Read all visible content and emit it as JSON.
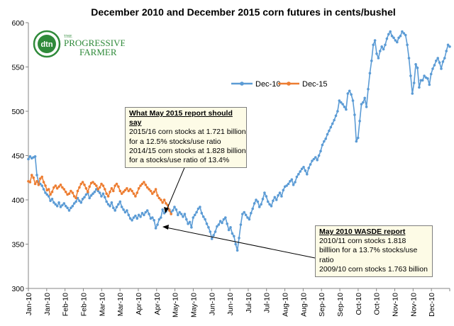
{
  "logo": {
    "badge": "dtn",
    "line1": "THE",
    "line2": "PROGRESSIVE",
    "line3": "FARMER"
  },
  "colors": {
    "dec10": "#5b9bd5",
    "dec15": "#ed7d31",
    "axis": "#868686",
    "note_bg": "#fdfbe6",
    "logo_green": "#2f8a3a"
  },
  "notes": [
    {
      "id": "may2015",
      "title": "What May 2015 report should say",
      "lines": [
        "2015/16 corn stocks at 1.721 billion",
        "for a 12.5% stocks/use ratio",
        "2014/15 corn stocks at 1.828 billion",
        "for a stocks/use ratio of 13.4%"
      ]
    },
    {
      "id": "may2010",
      "title": "May 2010 WASDE report",
      "lines": [
        "2010/11 corn stocks 1.818",
        "billlion for a 13.7% stocks/use",
        "ratio",
        "2009/10 corn stocks 1.763 billion"
      ]
    }
  ],
  "chart_data": {
    "type": "line",
    "title": "December 2010 and December 2015 corn futures in cents/bushel",
    "xlabel": "",
    "ylabel": "",
    "ylim": [
      300,
      600
    ],
    "yticks": [
      300,
      350,
      400,
      450,
      500,
      550,
      600
    ],
    "xticks": [
      "Jan-10",
      "Jan-10",
      "Feb-10",
      "Feb-10",
      "Mar-10",
      "Mar-10",
      "Apr-10",
      "Apr-10",
      "May-10",
      "May-10",
      "Jun-10",
      "Jun-10",
      "Jul-10",
      "Jul-10",
      "Aug-10",
      "Aug-10",
      "Sep-10",
      "Sep-10",
      "Oct-10",
      "Oct-10",
      "Nov-10",
      "Nov-10",
      "Dec-10"
    ],
    "grid": false,
    "legend": "top-center",
    "series": [
      {
        "name": "Dec-10",
        "x_range": [
          0,
          248
        ],
        "values": [
          446,
          449,
          447,
          448,
          449,
          428,
          420,
          418,
          416,
          412,
          408,
          406,
          404,
          399,
          401,
          397,
          395,
          393,
          397,
          392,
          394,
          396,
          393,
          391,
          388,
          391,
          393,
          396,
          398,
          402,
          399,
          397,
          401,
          403,
          406,
          408,
          402,
          405,
          407,
          409,
          412,
          410,
          408,
          404,
          407,
          403,
          398,
          395,
          393,
          397,
          391,
          388,
          392,
          395,
          398,
          392,
          389,
          386,
          388,
          383,
          379,
          377,
          380,
          382,
          379,
          383,
          381,
          385,
          383,
          386,
          388,
          384,
          379,
          380,
          377,
          368,
          372,
          378,
          380,
          389,
          385,
          387,
          390,
          389,
          386,
          388,
          392,
          389,
          383,
          386,
          384,
          381,
          384,
          378,
          373,
          375,
          369,
          380,
          383,
          386,
          390,
          392,
          385,
          381,
          378,
          373,
          369,
          364,
          356,
          360,
          364,
          370,
          372,
          376,
          374,
          378,
          380,
          373,
          366,
          369,
          362,
          359,
          350,
          343,
          357,
          372,
          384,
          386,
          383,
          380,
          378,
          385,
          390,
          396,
          400,
          398,
          392,
          395,
          401,
          408,
          404,
          398,
          395,
          393,
          399,
          403,
          400,
          405,
          408,
          404,
          411,
          415,
          416,
          418,
          421,
          423,
          417,
          420,
          426,
          429,
          432,
          435,
          437,
          433,
          429,
          436,
          440,
          444,
          446,
          448,
          445,
          450,
          455,
          462,
          466,
          469,
          474,
          478,
          482,
          486,
          490,
          495,
          500,
          512,
          510,
          508,
          505,
          502,
          520,
          523,
          519,
          512,
          496,
          466,
          470,
          489,
          508,
          510,
          515,
          505,
          525,
          543,
          557,
          575,
          580,
          565,
          560,
          568,
          573,
          570,
          575,
          582,
          587,
          590,
          585,
          583,
          580,
          578,
          583,
          585,
          590,
          588,
          586,
          575,
          560,
          540,
          520,
          532,
          553,
          549,
          527,
          535,
          535,
          540,
          538,
          537,
          530,
          542,
          548,
          552,
          557,
          560,
          555,
          548,
          556,
          560,
          568,
          575,
          573
        ]
      },
      {
        "name": "Dec-15",
        "x_range": [
          0,
          84
        ],
        "values": [
          421,
          420,
          428,
          425,
          418,
          421,
          417,
          424,
          426,
          420,
          416,
          411,
          412,
          406,
          409,
          414,
          416,
          413,
          415,
          417,
          414,
          412,
          409,
          406,
          407,
          410,
          408,
          404,
          402,
          410,
          414,
          418,
          420,
          417,
          413,
          409,
          415,
          419,
          420,
          418,
          416,
          412,
          414,
          418,
          416,
          412,
          407,
          404,
          409,
          413,
          410,
          416,
          418,
          415,
          410,
          407,
          409,
          411,
          413,
          410,
          412,
          410,
          407,
          404,
          408,
          413,
          416,
          418,
          420,
          417,
          414,
          412,
          410,
          407,
          409,
          412,
          405,
          402,
          400,
          397,
          400,
          396,
          394,
          388,
          384
        ]
      }
    ]
  }
}
